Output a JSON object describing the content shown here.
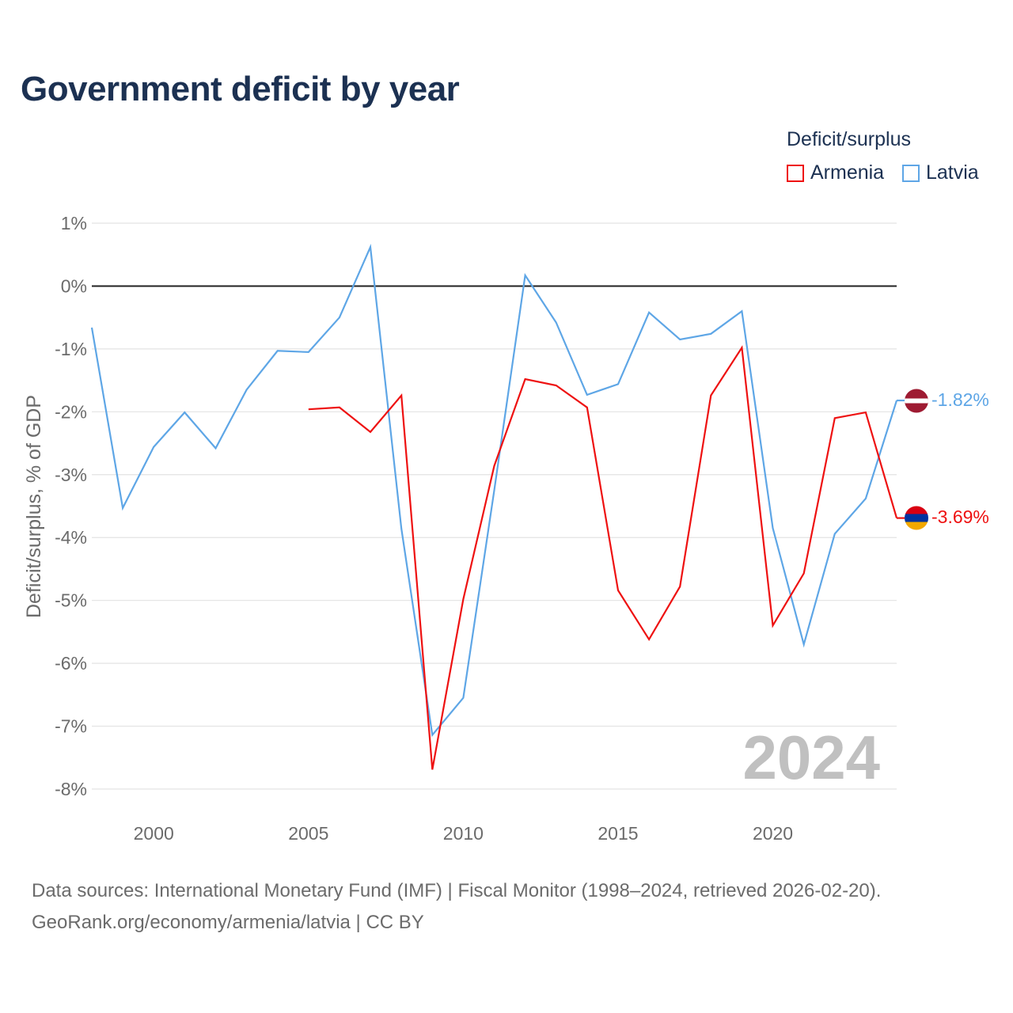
{
  "title": "Government deficit by year",
  "legend": {
    "title": "Deficit/surplus",
    "items": [
      {
        "name": "Armenia",
        "color": "#ee1111"
      },
      {
        "name": "Latvia",
        "color": "#5ea6e6"
      }
    ]
  },
  "source": {
    "line1": "Data sources: International Monetary Fund (IMF) | Fiscal Monitor (1998–2024, retrieved 2026-02-20).",
    "line2": "GeoRank.org/economy/armenia/latvia | CC BY"
  },
  "chart_data": {
    "type": "line",
    "title": "Government deficit by year",
    "ylabel": "Deficit/surplus, % of GDP",
    "xlabel": "",
    "xlim": [
      1998,
      2024
    ],
    "ylim": [
      -8,
      1
    ],
    "yticks": [
      1,
      0,
      -1,
      -2,
      -3,
      -4,
      -5,
      -6,
      -7,
      -8
    ],
    "ytick_labels": [
      "1%",
      "0%",
      "-1%",
      "-2%",
      "-3%",
      "-4%",
      "-5%",
      "-6%",
      "-7%",
      "-8%"
    ],
    "xticks": [
      2000,
      2005,
      2010,
      2015,
      2020
    ],
    "xtick_labels": [
      "2000",
      "2005",
      "2010",
      "2015",
      "2020"
    ],
    "watermark_year": "2024",
    "series": [
      {
        "name": "Armenia",
        "color": "#ee1111",
        "x": [
          2005,
          2006,
          2007,
          2008,
          2009,
          2010,
          2011,
          2012,
          2013,
          2014,
          2015,
          2016,
          2017,
          2018,
          2019,
          2020,
          2021,
          2022,
          2023,
          2024
        ],
        "values": [
          -1.96,
          -1.93,
          -2.32,
          -1.74,
          -7.69,
          -4.98,
          -2.86,
          -1.48,
          -1.58,
          -1.93,
          -4.84,
          -5.62,
          -4.78,
          -1.74,
          -0.98,
          -5.4,
          -4.57,
          -2.1,
          -2.01,
          -3.69
        ],
        "end_label": "-3.69%"
      },
      {
        "name": "Latvia",
        "color": "#5ea6e6",
        "x": [
          1998,
          1999,
          2000,
          2001,
          2002,
          2003,
          2004,
          2005,
          2006,
          2007,
          2008,
          2009,
          2010,
          2011,
          2012,
          2013,
          2014,
          2015,
          2016,
          2017,
          2018,
          2019,
          2020,
          2021,
          2022,
          2023,
          2024
        ],
        "values": [
          -0.66,
          -3.53,
          -2.56,
          -2.01,
          -2.58,
          -1.65,
          -1.03,
          -1.05,
          -0.5,
          0.62,
          -3.86,
          -7.14,
          -6.55,
          -3.25,
          0.17,
          -0.58,
          -1.73,
          -1.56,
          -0.42,
          -0.85,
          -0.76,
          -0.4,
          -3.85,
          -5.7,
          -3.94,
          -3.38,
          -1.82
        ],
        "end_label": "-1.82%"
      }
    ]
  }
}
